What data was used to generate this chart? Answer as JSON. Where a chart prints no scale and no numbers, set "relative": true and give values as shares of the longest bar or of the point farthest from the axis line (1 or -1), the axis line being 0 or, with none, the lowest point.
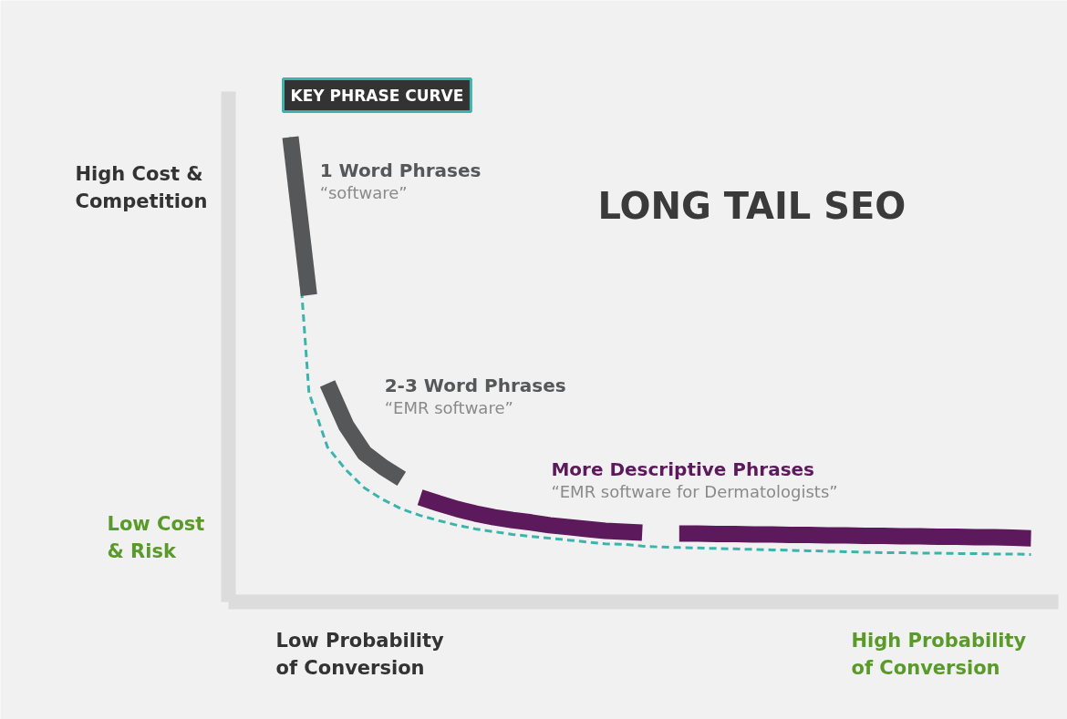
{
  "chart_data": {
    "type": "line",
    "title": "LONG TAIL SEO",
    "relative": true,
    "categories": [
      null,
      null,
      null,
      null,
      null,
      null,
      null,
      null,
      null,
      null,
      null,
      null,
      null,
      null,
      null,
      null,
      null,
      null,
      null,
      null,
      null,
      null,
      null,
      null,
      null,
      null,
      null,
      null,
      null,
      null,
      null,
      null,
      null,
      null,
      null,
      null,
      null,
      null,
      null,
      null,
      null
    ],
    "series": [
      {
        "name": "KEY PHRASE CURVE",
        "color": "#3cb4ac",
        "line_style": "dashed",
        "values": [
          1.0,
          0.45,
          0.333,
          0.284,
          0.245,
          0.22,
          0.2,
          0.186,
          0.175,
          0.165,
          0.157,
          0.151,
          0.145,
          0.141,
          0.137,
          0.133,
          0.129,
          0.125,
          0.124,
          0.12,
          0.118,
          0.117,
          0.116,
          0.115,
          0.114,
          0.113,
          0.112,
          0.111,
          0.11,
          0.109,
          0.108,
          0.107,
          0.106,
          0.106,
          0.105,
          0.105,
          0.104,
          0.104,
          0.103,
          0.103,
          0.102
        ]
      },
      {
        "name": "1 Word Phrases",
        "color": "#555759",
        "values": [
          1.0,
          0.66,
          null,
          null,
          null,
          null,
          null,
          null,
          null,
          null,
          null,
          null,
          null,
          null,
          null,
          null,
          null,
          null,
          null,
          null,
          null,
          null,
          null,
          null,
          null,
          null,
          null,
          null,
          null,
          null,
          null,
          null,
          null,
          null,
          null,
          null,
          null,
          null,
          null,
          null,
          null
        ]
      },
      {
        "name": "2-3 Word Phrases",
        "color": "#555759",
        "values": [
          null,
          null,
          0.47,
          0.38,
          0.32,
          0.29,
          0.265,
          null,
          null,
          null,
          null,
          null,
          null,
          null,
          null,
          null,
          null,
          null,
          null,
          null,
          null,
          null,
          null,
          null,
          null,
          null,
          null,
          null,
          null,
          null,
          null,
          null,
          null,
          null,
          null,
          null,
          null,
          null,
          null,
          null,
          null
        ]
      },
      {
        "name": "More Descriptive Phrases",
        "color": "#5c1a5c",
        "values": [
          null,
          null,
          null,
          null,
          null,
          null,
          null,
          0.225,
          0.212,
          0.2,
          0.19,
          0.182,
          0.176,
          0.171,
          0.165,
          0.161,
          0.157,
          0.153,
          0.151,
          0.149,
          null,
          null,
          null,
          null,
          null,
          null,
          null,
          null,
          null,
          null,
          null,
          null,
          null,
          null,
          null,
          null,
          null,
          null,
          null,
          null,
          null
        ]
      },
      {
        "color": "#5c1a5c",
        "values": [
          null,
          null,
          null,
          null,
          null,
          null,
          null,
          null,
          null,
          null,
          null,
          null,
          null,
          null,
          null,
          null,
          null,
          null,
          null,
          null,
          null,
          0.147,
          0.147,
          0.146,
          0.146,
          0.145,
          0.145,
          0.144,
          0.144,
          0.143,
          0.143,
          0.142,
          0.142,
          0.141,
          0.141,
          0.14,
          0.14,
          0.139,
          0.139,
          0.138,
          0.137
        ]
      }
    ],
    "annotations": [
      "“software”",
      "“EMR software”",
      "“EMR software for Dermatologists”",
      "High Cost &\nCompetition",
      "Low Cost\n& Risk",
      "Low Probability\nof Conversion",
      "High Probability\nof Conversion"
    ]
  }
}
